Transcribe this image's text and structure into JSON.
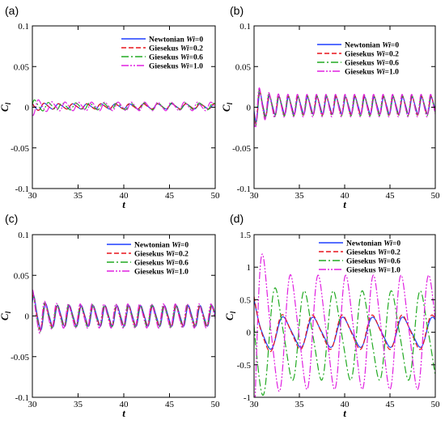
{
  "panel_labels": [
    "(a)",
    "(b)",
    "(c)",
    "(d)"
  ],
  "legend_prefix": [
    "Newtonian",
    "Giesekus",
    "Giesekus",
    "Giesekus"
  ],
  "legend_wi": [
    "Wi",
    "Wi",
    "Wi",
    "Wi"
  ],
  "legend_value": [
    "=0",
    "=0.2",
    "=0.6",
    "=1.0"
  ],
  "series_colors": [
    "#1f3fff",
    "#e8141c",
    "#22aa22",
    "#e020e0"
  ],
  "chart_data": [
    {
      "panel": "(a)",
      "type": "line",
      "xlabel": "t",
      "ylabel": "Cl",
      "xlim": [
        30,
        50
      ],
      "ylim": [
        -0.1,
        0.1
      ],
      "xticks": [
        "30",
        "35",
        "40",
        "45",
        "50"
      ],
      "yticks": [
        "0.1",
        "0.05",
        "0",
        "-0.05",
        "-0.1"
      ],
      "legend_position": "top-right",
      "grid": false,
      "series": [
        {
          "name": "Newtonian Wi=0",
          "mean": 0.001,
          "amplitude": 0.003,
          "period": 1.55,
          "phase": 0.0
        },
        {
          "name": "Giesekus Wi=0.2",
          "mean": 0.001,
          "amplitude": 0.003,
          "period": 1.55,
          "phase": 0.1
        },
        {
          "name": "Giesekus Wi=0.6",
          "mean": 0.001,
          "amplitude": 0.004,
          "period": 1.5,
          "phase": 0.2
        },
        {
          "name": "Giesekus Wi=1.0",
          "mean": 0.001,
          "amplitude": 0.005,
          "period": 1.45,
          "phase": 0.3
        }
      ]
    },
    {
      "panel": "(b)",
      "type": "line",
      "xlabel": "t",
      "ylabel": "Cl",
      "xlim": [
        30,
        50
      ],
      "ylim": [
        -0.1,
        0.1
      ],
      "xticks": [
        "30",
        "35",
        "40",
        "45",
        "50"
      ],
      "yticks": [
        "0.1",
        "0.05",
        "0",
        "-0.05",
        "-0.1"
      ],
      "legend_position": "top-right",
      "grid": false,
      "series": [
        {
          "name": "Newtonian Wi=0",
          "mean": 0.002,
          "amplitude": 0.01,
          "period": 1.05,
          "phase": 0.0
        },
        {
          "name": "Giesekus Wi=0.2",
          "mean": 0.002,
          "amplitude": 0.011,
          "period": 1.05,
          "phase": 0.15
        },
        {
          "name": "Giesekus Wi=0.6",
          "mean": 0.002,
          "amplitude": 0.012,
          "period": 1.05,
          "phase": 0.3
        },
        {
          "name": "Giesekus Wi=1.0",
          "mean": 0.002,
          "amplitude": 0.013,
          "period": 1.05,
          "phase": 0.45
        }
      ]
    },
    {
      "panel": "(c)",
      "type": "line",
      "xlabel": "t",
      "ylabel": "Cl",
      "xlim": [
        30,
        50
      ],
      "ylim": [
        -0.1,
        0.1
      ],
      "xticks": [
        "30",
        "35",
        "40",
        "45",
        "50"
      ],
      "yticks": [
        "0.1",
        "0.05",
        "0",
        "-0.05",
        "-0.1"
      ],
      "legend_position": "top-right",
      "grid": false,
      "series": [
        {
          "name": "Newtonian Wi=0",
          "mean": 0.0,
          "amplitude": 0.012,
          "period": 1.3,
          "phase": 0.0
        },
        {
          "name": "Giesekus Wi=0.2",
          "mean": 0.0,
          "amplitude": 0.012,
          "period": 1.3,
          "phase": 0.2
        },
        {
          "name": "Giesekus Wi=0.6",
          "mean": 0.0,
          "amplitude": 0.013,
          "period": 1.3,
          "phase": 0.4
        },
        {
          "name": "Giesekus Wi=1.0",
          "mean": 0.0,
          "amplitude": 0.014,
          "period": 1.3,
          "phase": 0.6
        }
      ]
    },
    {
      "panel": "(d)",
      "type": "line",
      "xlabel": "t",
      "ylabel": "Cl",
      "xlim": [
        30,
        50
      ],
      "ylim": [
        -1,
        1.5
      ],
      "xticks": [
        "30",
        "35",
        "40",
        "45",
        "50"
      ],
      "yticks": [
        "1.5",
        "1",
        "0.5",
        "0",
        "-0.5",
        "-1"
      ],
      "legend_position": "top-right",
      "grid": false,
      "series": [
        {
          "name": "Newtonian Wi=0",
          "mean": 0.0,
          "amplitude": 0.22,
          "period": 3.3,
          "phase": 0.9
        },
        {
          "name": "Giesekus Wi=0.2",
          "mean": 0.0,
          "amplitude": 0.25,
          "period": 3.3,
          "phase": 1.0
        },
        {
          "name": "Giesekus Wi=0.6",
          "mean": -0.05,
          "amplitude": 0.65,
          "period": 3.2,
          "phase": 0.6
        },
        {
          "name": "Giesekus Wi=1.0",
          "mean": 0.0,
          "amplitude": 0.83,
          "period": 3.05,
          "phase": 0.3
        }
      ]
    }
  ]
}
